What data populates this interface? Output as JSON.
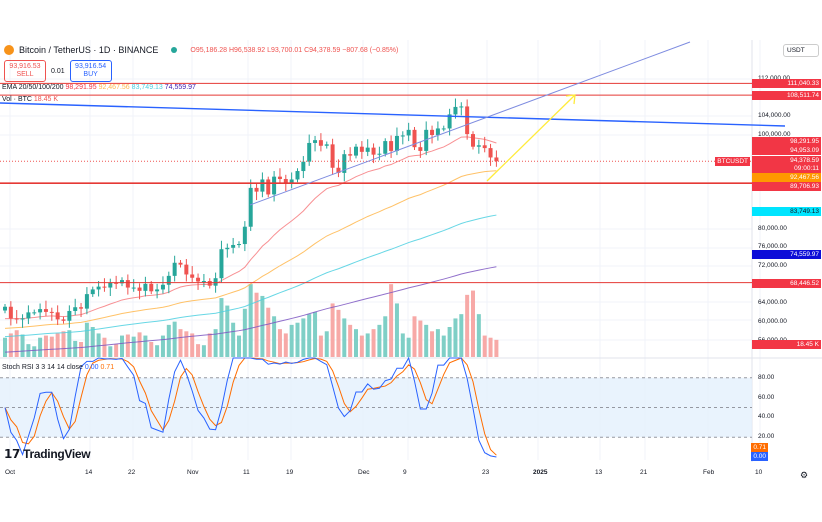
{
  "header": {
    "symbol": "Bitcoin / TetherUS · 1D · BINANCE",
    "open": "O95,186.28",
    "high": "H96,538.92",
    "low": "L93,700.01",
    "close": "C94,378.59",
    "change": "−807.68 (−0.85%)"
  },
  "trade": {
    "sell_price": "93,916.53",
    "sell_label": "SELL",
    "spread": "0.01",
    "buy_price": "93,916.54",
    "buy_label": "BUY"
  },
  "indicators": {
    "ema_label": "EMA 20/50/100/200",
    "ema20": "98,291.95",
    "ema50": "92,467.56",
    "ema100": "83,749.13",
    "ema200": "74,559.97",
    "vol_label": "Vol · BTC",
    "vol_value": "18.45 K",
    "stoch_label": "Stoch RSI 3 3 14 14 close",
    "stoch_k": "0.00",
    "stoch_d": "0.71"
  },
  "currency": "USDT",
  "colors": {
    "up": "#26a69a",
    "down": "#ef5350",
    "ema20": "#f77c80",
    "ema50": "#ffb74d",
    "ema100": "#4dd0e1",
    "ema200": "#7e57c2",
    "level": "#e53935",
    "trend": "#2962ff",
    "arrow": "#ffeb3b"
  },
  "price_axis": [
    "112,000.00",
    "104,000.00",
    "100,000.00",
    "80,000.00",
    "76,000.00",
    "72,000.00",
    "64,000.00",
    "60,000.00",
    "56,000.00"
  ],
  "price_labels": [
    {
      "text": "111,040.33",
      "price": 111040,
      "color": "#f23645"
    },
    {
      "text": "108,511.74",
      "price": 108511,
      "color": "#f23645"
    },
    {
      "text": "98,291.95",
      "price": 98800,
      "color": "#f23645"
    },
    {
      "text": "94,953.09",
      "price": 96800,
      "color": "#f23645"
    },
    {
      "text": "94,378.59",
      "price": 94700,
      "color": "#f23645"
    },
    {
      "text": "09:00:11",
      "price": 92900,
      "color": "#f23645"
    },
    {
      "text": "92,467.56",
      "price": 91000,
      "color": "#ff9800"
    },
    {
      "text": "89,706.93",
      "price": 89200,
      "color": "#f23645"
    },
    {
      "text": "83,749.13",
      "price": 83749,
      "color": "#00e5ff"
    },
    {
      "text": "74,559.97",
      "price": 74559,
      "color": "#0d0dd8"
    },
    {
      "text": "68,446.52",
      "price": 68446,
      "color": "#f23645"
    }
  ],
  "symbol_tag": "BTCUSDT",
  "volume_label": "18.45 K",
  "stoch_axis": [
    "80.00",
    "60.00",
    "40.00",
    "20.00"
  ],
  "stoch_labels": {
    "d": "0.71",
    "k": "0.00"
  },
  "time_axis": [
    "Oct",
    "14",
    "22",
    "Nov",
    "11",
    "19",
    "Dec",
    "9",
    "23",
    "2025",
    "13",
    "21",
    "Feb",
    "10"
  ],
  "brand": "TradingView",
  "chart_data": {
    "type": "candlestick",
    "start": "2024-09-30",
    "closes": [
      63.3,
      60.8,
      60.6,
      60.8,
      62.1,
      62.1,
      62.8,
      62.2,
      62.1,
      60.6,
      60.3,
      62.4,
      63.2,
      62.9,
      66.0,
      67.0,
      67.6,
      67.4,
      68.4,
      68.3,
      69.0,
      67.4,
      67.4,
      66.7,
      68.2,
      66.6,
      67.0,
      68.0,
      69.9,
      72.7,
      72.3,
      70.2,
      69.5,
      68.7,
      68.8,
      67.8,
      69.4,
      75.6,
      75.9,
      76.5,
      76.7,
      80.4,
      88.7,
      87.9,
      90.5,
      87.3,
      91.1,
      90.6,
      89.8,
      90.5,
      92.3,
      94.3,
      98.3,
      98.9,
      97.7,
      98.0,
      93.0,
      91.9,
      95.9,
      95.6,
      97.5,
      96.4,
      97.3,
      95.8,
      96.0,
      98.7,
      96.6,
      99.8,
      99.9,
      101.1,
      97.4,
      96.6,
      101.1,
      100.0,
      101.4,
      101.4,
      104.4,
      106.0,
      106.1,
      100.2,
      97.5,
      97.8,
      97.2,
      95.2,
      94.4
    ],
    "close_unit": "thousand USDT",
    "volumes": [
      18,
      22,
      25,
      21,
      12,
      10,
      18,
      20,
      19,
      22,
      24,
      25,
      15,
      14,
      32,
      28,
      22,
      18,
      10,
      12,
      20,
      21,
      19,
      23,
      20,
      14,
      11,
      20,
      30,
      33,
      26,
      24,
      22,
      12,
      11,
      22,
      26,
      55,
      48,
      32,
      20,
      45,
      68,
      60,
      57,
      46,
      38,
      26,
      22,
      30,
      32,
      36,
      40,
      42,
      20,
      24,
      50,
      44,
      36,
      30,
      26,
      20,
      22,
      26,
      30,
      38,
      68,
      50,
      22,
      18,
      38,
      34,
      30,
      24,
      26,
      20,
      28,
      36,
      40,
      58,
      62,
      40,
      20,
      18,
      16
    ],
    "stoch_k_last": 0.0,
    "stoch_d_last": 0.71,
    "levels": [
      111040.33,
      108511.74,
      89706.93,
      68446.52
    ]
  }
}
